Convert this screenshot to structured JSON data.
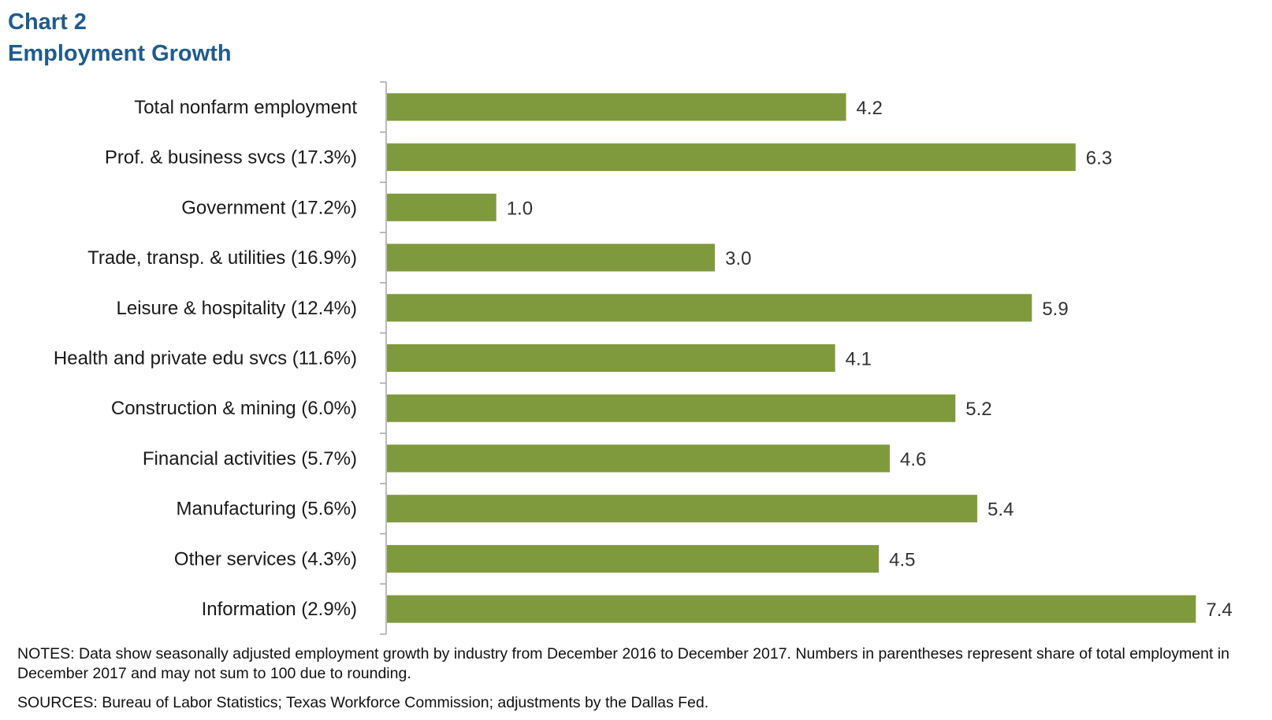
{
  "header": {
    "chart_label": "Chart 2",
    "title": "Employment  Growth"
  },
  "footer": {
    "notes": "NOTES: Data show seasonally adjusted employment growth by industry from December 2016 to December 2017. Numbers in parentheses represent share of total employment in December 2017 and may not sum to 100 due to rounding.",
    "sources": "SOURCES: Bureau of Labor Statistics; Texas Workforce Commission; adjustments by the Dallas Fed."
  },
  "colors": {
    "bar": "#7f9a3d",
    "title": "#1f5b8f",
    "axis": "#a6a6a6",
    "text": "#1a1a1a"
  },
  "chart_data": {
    "type": "bar",
    "orientation": "horizontal",
    "title": "Employment  Growth",
    "xlabel": "",
    "ylabel": "",
    "xlim": [
      0,
      7.6
    ],
    "grid": false,
    "categories": [
      "Total nonfarm employment",
      "Prof. & business svcs (17.3%)",
      "Government (17.2%)",
      "Trade, transp. & utilities (16.9%)",
      "Leisure & hospitality (12.4%)",
      "Health and private edu svcs (11.6%)",
      "Construction & mining (6.0%)",
      "Financial activities (5.7%)",
      "Manufacturing (5.6%)",
      "Other services (4.3%)",
      "Information (2.9%)"
    ],
    "values": [
      4.2,
      6.3,
      1.0,
      3.0,
      5.9,
      4.1,
      5.2,
      4.6,
      5.4,
      4.5,
      7.4
    ],
    "value_labels": [
      "4.2",
      "6.3",
      "1.0",
      "3.0",
      "5.9",
      "4.1",
      "5.2",
      "4.6",
      "5.4",
      "4.5",
      "7.4"
    ]
  }
}
